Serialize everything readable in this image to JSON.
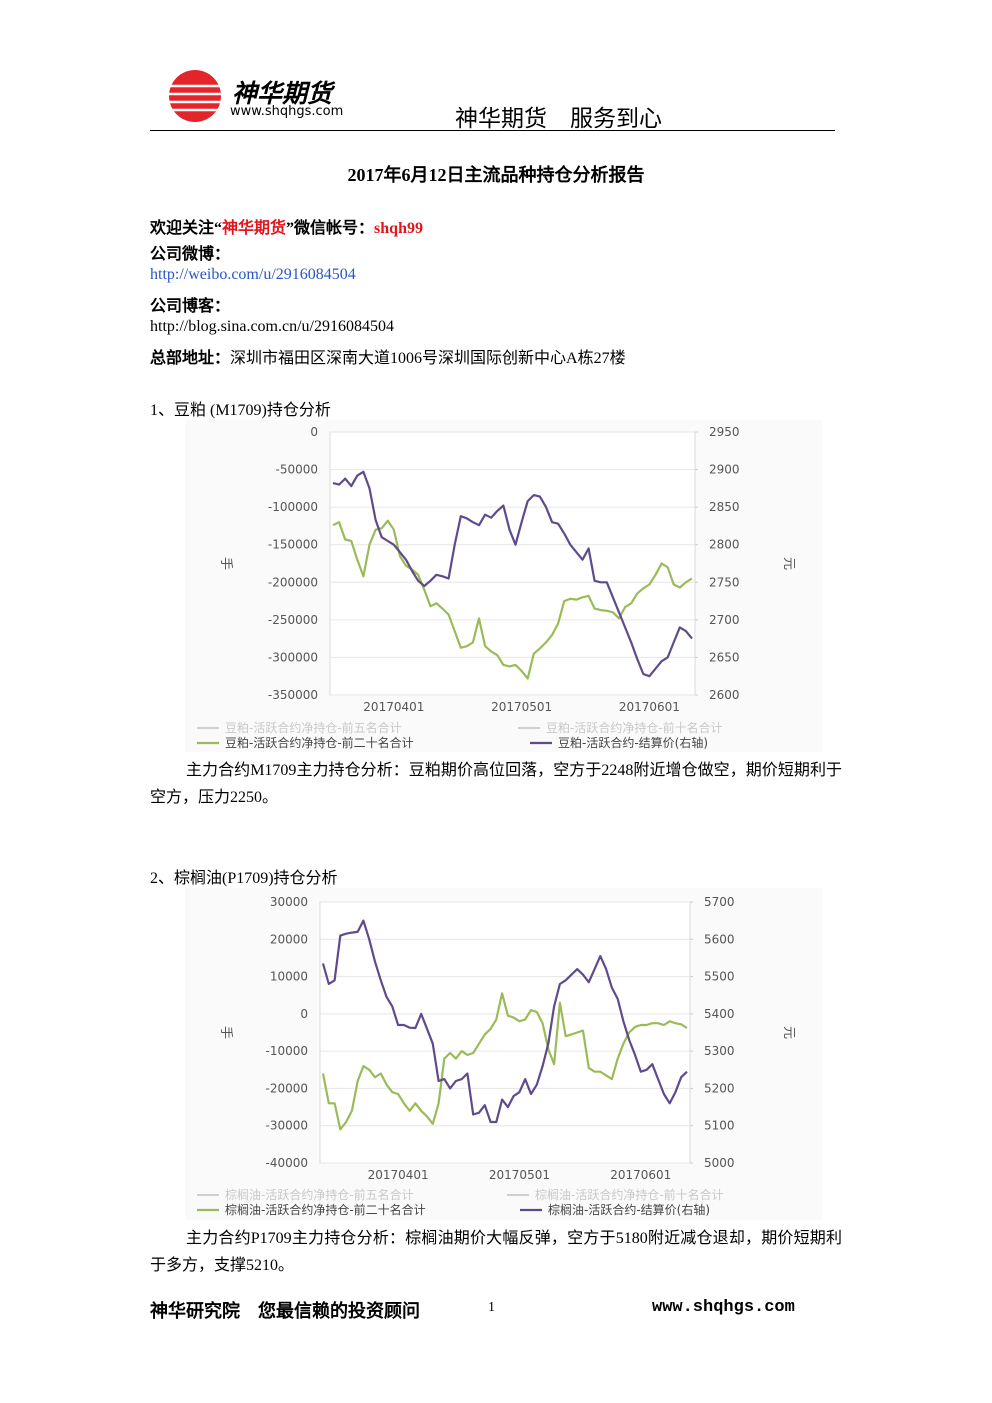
{
  "header": {
    "logo_name": "神华期货",
    "logo_url": "www.shqhgs.com",
    "slogan": "神华期货　服务到心"
  },
  "title": "2017年6月12日主流品种持仓分析报告",
  "contacts": {
    "wechat_prefix": "欢迎关注“",
    "brand": "神华期货",
    "wechat_middle": "”微信帐号：",
    "wechat_id": "shqh99",
    "weibo_label": "公司微博：",
    "weibo_url": "http://weibo.com/u/2916084504",
    "blog_label": "公司博客：",
    "blog_url": "http://blog.sina.com.cn/u/2916084504",
    "address_label": "总部地址：",
    "address": "深圳市福田区深南大道1006号深圳国际创新中心A栋27楼"
  },
  "sections": [
    {
      "heading": "1、豆粕 (M1709)持仓分析",
      "analysis": "主力合约M1709主力持仓分析：豆粕期价高位回落，空方于2248附近增仓做空，期价短期利于空方，压力2250。"
    },
    {
      "heading": "2、棕榈油(P1709)持仓分析",
      "analysis": "主力合约P1709主力持仓分析：棕榈油期价大幅反弹，空方于5180附近减仓退却，期价短期利于多方，支撑5210。"
    }
  ],
  "chart_data": [
    {
      "type": "line",
      "y_label": "手",
      "y2_label": "元",
      "categories": [
        null,
        null,
        null,
        null,
        null,
        null,
        null,
        null,
        null,
        null,
        "20170401",
        null,
        null,
        null,
        null,
        null,
        null,
        null,
        null,
        null,
        null,
        null,
        null,
        null,
        null,
        null,
        null,
        null,
        null,
        null,
        null,
        "20170501",
        null,
        null,
        null,
        null,
        null,
        null,
        null,
        null,
        null,
        null,
        null,
        null,
        null,
        null,
        null,
        null,
        null,
        null,
        null,
        null,
        "20170601",
        null,
        null,
        null,
        null,
        null,
        null,
        null
      ],
      "ylim": [
        -350000,
        0
      ],
      "yticks": [
        0,
        -50000,
        -100000,
        -150000,
        -200000,
        -250000,
        -300000,
        -350000
      ],
      "y2lim": [
        2600,
        2950
      ],
      "y2ticks": [
        2950,
        2900,
        2850,
        2800,
        2750,
        2700,
        2650,
        2600
      ],
      "grid": true,
      "inactive_legend": [
        "豆粕-活跃合约净持仓-前五名合计",
        "豆粕-活跃合约净持仓-前十名合计"
      ],
      "series": [
        {
          "name": "豆粕-活跃合约净持仓-前二十名合计",
          "color": "#9bbb59",
          "values": [
            -124000,
            -120000,
            -143000,
            -145000,
            -170000,
            -192000,
            -150000,
            -130000,
            -128000,
            -118000,
            -130000,
            -165000,
            -178000,
            -183000,
            -190000,
            -210000,
            -232000,
            -228000,
            -235000,
            -243000,
            -265000,
            -287000,
            -285000,
            -280000,
            -248000,
            -285000,
            -292000,
            -297000,
            -310000,
            -312000,
            -310000,
            -318000,
            -328000,
            -295000,
            -288000,
            -280000,
            -270000,
            -255000,
            -225000,
            -222000,
            -223000,
            -220000,
            -218000,
            -235000,
            -237000,
            -238000,
            -240000,
            -248000,
            -233000,
            -228000,
            -215000,
            -208000,
            -203000,
            -190000,
            -175000,
            -180000,
            -203000,
            -207000,
            -200000,
            -195000
          ]
        },
        {
          "name": "豆粕-活跃合约-结算价(右轴)",
          "color": "#5f4b8b",
          "axis": "y2",
          "values": [
            2882,
            2880,
            2888,
            2878,
            2892,
            2897,
            2875,
            2833,
            2810,
            2805,
            2800,
            2790,
            2780,
            2765,
            2752,
            2745,
            2752,
            2760,
            2758,
            2755,
            2800,
            2838,
            2835,
            2830,
            2826,
            2840,
            2836,
            2845,
            2852,
            2820,
            2800,
            2830,
            2858,
            2866,
            2864,
            2850,
            2830,
            2828,
            2815,
            2800,
            2790,
            2780,
            2795,
            2752,
            2750,
            2750,
            2730,
            2710,
            2690,
            2670,
            2648,
            2628,
            2625,
            2635,
            2645,
            2650,
            2670,
            2690,
            2685,
            2675
          ]
        }
      ]
    },
    {
      "type": "line",
      "y_label": "手",
      "y2_label": "元",
      "categories": [
        null,
        null,
        null,
        null,
        null,
        null,
        null,
        null,
        null,
        null,
        null,
        null,
        null,
        "20170401",
        null,
        null,
        null,
        null,
        null,
        null,
        null,
        null,
        null,
        null,
        null,
        null,
        null,
        null,
        null,
        null,
        null,
        null,
        null,
        null,
        "20170501",
        null,
        null,
        null,
        null,
        null,
        null,
        null,
        null,
        null,
        null,
        null,
        null,
        null,
        null,
        null,
        null,
        null,
        null,
        null,
        null,
        "20170601",
        null,
        null,
        null,
        null,
        null,
        null,
        null,
        null
      ],
      "ylim": [
        -40000,
        30000
      ],
      "yticks": [
        30000,
        20000,
        10000,
        0,
        -10000,
        -20000,
        -30000,
        -40000
      ],
      "y2lim": [
        5000,
        5700
      ],
      "y2ticks": [
        5700,
        5600,
        5500,
        5400,
        5300,
        5200,
        5100,
        5000
      ],
      "grid": true,
      "inactive_legend": [
        "棕榈油-活跃合约净持仓-前五名合计",
        "棕榈油-活跃合约净持仓-前十名合计"
      ],
      "series": [
        {
          "name": "棕榈油-活跃合约净持仓-前二十名合计",
          "color": "#9bbb59",
          "values": [
            -16000,
            -24000,
            -24000,
            -31000,
            -29000,
            -26000,
            -18000,
            -14000,
            -15000,
            -17000,
            -16000,
            -19000,
            -21000,
            -21500,
            -24000,
            -26000,
            -24000,
            -26000,
            -27500,
            -29500,
            -24000,
            -12000,
            -10500,
            -12000,
            -10000,
            -11000,
            -10500,
            -8000,
            -5500,
            -4000,
            -1500,
            5500,
            -500,
            -1000,
            -2000,
            -1500,
            1000,
            500,
            -2500,
            -9500,
            -13500,
            3000,
            -6000,
            -5500,
            -5000,
            -4500,
            -14500,
            -15500,
            -15500,
            -16500,
            -17500,
            -12000,
            -8000,
            -5000,
            -3500,
            -3000,
            -3000,
            -2500,
            -2500,
            -3000,
            -2000,
            -2500,
            -2800,
            -3800
          ]
        },
        {
          "name": "棕榈油-活跃合约-结算价(右轴)",
          "color": "#5f4b8b",
          "axis": "y2",
          "values": [
            5535,
            5480,
            5490,
            5610,
            5615,
            5618,
            5620,
            5650,
            5600,
            5540,
            5490,
            5445,
            5420,
            5370,
            5370,
            5363,
            5362,
            5400,
            5360,
            5320,
            5220,
            5225,
            5200,
            5220,
            5225,
            5240,
            5130,
            5135,
            5155,
            5110,
            5110,
            5170,
            5150,
            5180,
            5190,
            5225,
            5185,
            5210,
            5260,
            5320,
            5420,
            5480,
            5490,
            5505,
            5520,
            5505,
            5485,
            5520,
            5555,
            5520,
            5470,
            5440,
            5380,
            5330,
            5290,
            5245,
            5250,
            5265,
            5225,
            5185,
            5160,
            5190,
            5230,
            5245
          ]
        }
      ]
    }
  ],
  "footer": {
    "left": "神华研究院　您最信赖的投资顾问",
    "page": "1",
    "url": "www.shqhgs.com"
  }
}
